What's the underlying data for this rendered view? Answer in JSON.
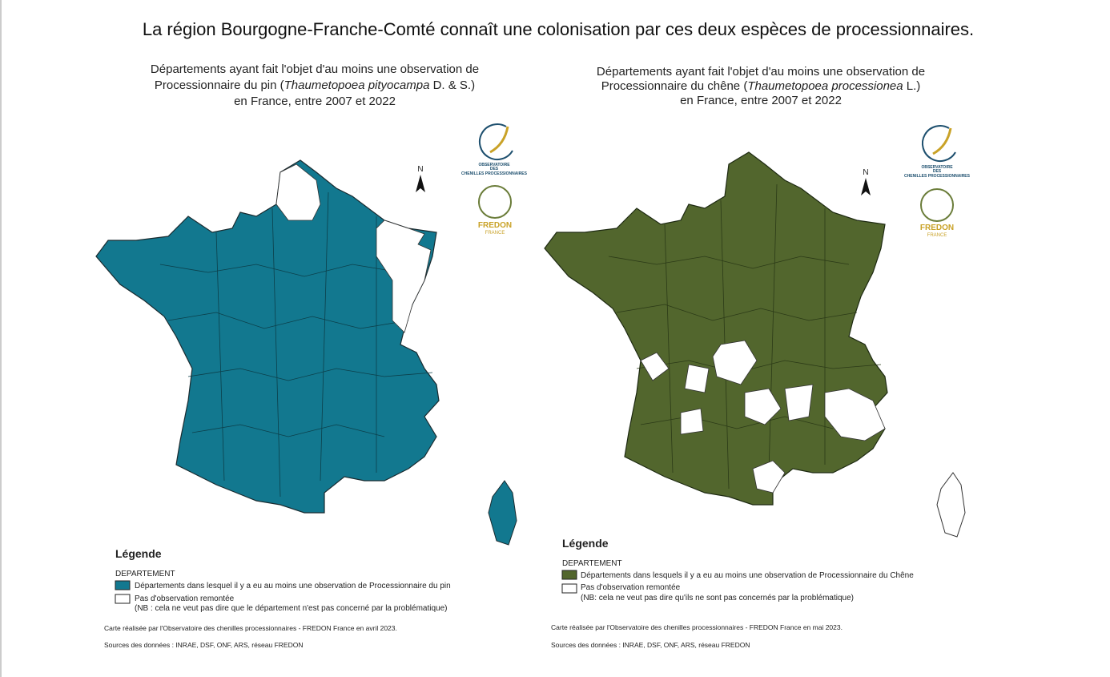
{
  "heading": "La région Bourgogne-Franche-Comté connaît une colonisation par ces deux espèces de processionnaires.",
  "maps": [
    {
      "title": {
        "line1": "Départements ayant fait l'objet d'au moins une observation de",
        "line2_before": "Processionnaire du pin (",
        "species": "Thaumetopoea pityocampa",
        "line2_after": " D. & S.)",
        "line3": "en France, entre 2007 et 2022"
      },
      "north": "N",
      "logo": {
        "observatoire": "OBSERVATOIRE",
        "des": "DES",
        "chenilles": "CHENILLES PROCESSIONNAIRES",
        "fredon": "FREDON",
        "france": "FRANCE"
      },
      "legend": {
        "title": "Légende",
        "group": "DEPARTEMENT",
        "observed": "Départements dans lesquel il y a eu au moins une observation de Processionnaire du pin",
        "not_observed": "Pas d'observation remontée",
        "note": "(NB : cela ne veut pas dire que le département n'est pas concerné par la problématique)"
      },
      "credit": "Carte réalisée par l'Observatoire des chenilles processionnaires - FREDON France en avril 2023.",
      "sources": "Sources des données : INRAE, DSF, ONF, ARS, réseau FREDON"
    },
    {
      "title": {
        "line1": "Départements ayant fait l'objet d'au moins une observation de",
        "line2_before": "Processionnaire du chêne (",
        "species": "Thaumetopoea processionea",
        "line2_after": " L.)",
        "line3": "en France, entre 2007 et 2022"
      },
      "north": "N",
      "logo": {
        "observatoire": "OBSERVATOIRE",
        "des": "DES",
        "chenilles": "CHENILLES PROCESSIONNAIRES",
        "fredon": "FREDON",
        "france": "FRANCE"
      },
      "legend": {
        "title": "Légende",
        "group": "DEPARTEMENT",
        "observed": "Départements dans lesquels il y a eu au moins une observation de Processionnaire du Chêne",
        "not_observed": "Pas d'observation remontée",
        "note": "(NB: cela ne veut pas dire qu'ils ne sont pas concernés par la problématique)"
      },
      "credit": "Carte réalisée par l'Observatoire des chenilles processionnaires - FREDON France en mai 2023.",
      "sources": "Sources des données : INRAE, DSF, ONF, ARS, réseau FREDON"
    }
  ]
}
